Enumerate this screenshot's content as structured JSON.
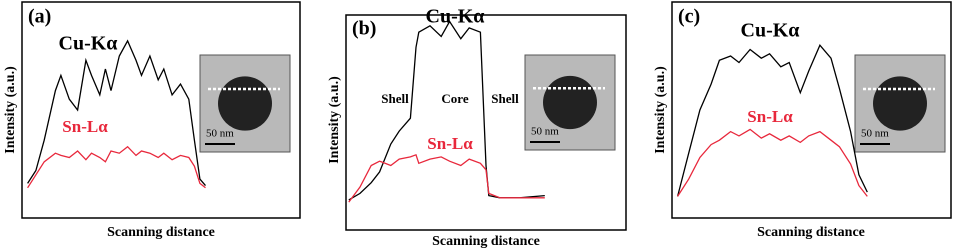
{
  "chart_data": [
    {
      "type": "line",
      "panel_label": "(a)",
      "xlabel": "Scanning distance",
      "ylabel": "Intensity (a.u.)",
      "scale_bar_label": "50 nm",
      "xlim": [
        0,
        100
      ],
      "ylim": [
        0,
        100
      ],
      "x": [
        2,
        5,
        8,
        12,
        14,
        17,
        20,
        23,
        25,
        28,
        30,
        32,
        35,
        38,
        41,
        43,
        46,
        49,
        51,
        54,
        57,
        60,
        62,
        64,
        66
      ],
      "series": [
        {
          "name": "Cu-Kα",
          "color": "#000000",
          "values": [
            16,
            22,
            36,
            59,
            66,
            55,
            50,
            73,
            66,
            57,
            69,
            59,
            75,
            82,
            73,
            66,
            75,
            64,
            69,
            57,
            62,
            55,
            36,
            18,
            15
          ]
        },
        {
          "name": "Sn-Lα",
          "color": "#e8283c",
          "values": [
            14,
            20,
            26,
            30,
            29,
            28,
            31,
            27,
            30,
            28,
            26,
            31,
            30,
            33,
            29,
            31,
            30,
            28,
            30,
            27,
            29,
            28,
            24,
            16,
            14
          ]
        }
      ]
    },
    {
      "type": "line",
      "panel_label": "(b)",
      "xlabel": "Scanning distance",
      "ylabel": "Intensity (a.u.)",
      "scale_bar_label": "50 nm",
      "annotations": [
        "Shell",
        "Core",
        "Shell"
      ],
      "xlim": [
        0,
        100
      ],
      "ylim": [
        0,
        100
      ],
      "x": [
        1,
        5,
        9,
        12,
        16,
        19,
        23,
        25,
        26,
        30,
        34,
        37,
        41,
        44,
        48,
        50,
        51,
        55,
        62,
        71
      ],
      "series": [
        {
          "name": "Cu-Kα",
          "color": "#000000",
          "values": [
            14,
            17,
            22,
            27,
            40,
            46,
            52,
            85,
            92,
            95,
            90,
            97,
            89,
            94,
            92,
            30,
            16,
            15,
            15,
            16
          ]
        },
        {
          "name": "Sn-Lα",
          "color": "#e8283c",
          "values": [
            13,
            20,
            30,
            32,
            30,
            33,
            34,
            35,
            31,
            33,
            34,
            32,
            30,
            33,
            31,
            28,
            17,
            15,
            15,
            15
          ]
        }
      ]
    },
    {
      "type": "line",
      "panel_label": "(c)",
      "xlabel": "Scanning distance",
      "ylabel": "Intensity (a.u.)",
      "scale_bar_label": "50 nm",
      "xlim": [
        0,
        100
      ],
      "ylim": [
        0,
        100
      ],
      "x": [
        2,
        6,
        10,
        14,
        17,
        21,
        24,
        28,
        32,
        35,
        39,
        42,
        46,
        49,
        53,
        57,
        60,
        64,
        67,
        70
      ],
      "series": [
        {
          "name": "Cu-Kα",
          "color": "#000000",
          "values": [
            10,
            30,
            50,
            62,
            73,
            75,
            72,
            78,
            74,
            76,
            70,
            72,
            58,
            68,
            80,
            74,
            60,
            40,
            20,
            12
          ]
        },
        {
          "name": "Sn-Lα",
          "color": "#e8283c",
          "values": [
            10,
            18,
            28,
            34,
            36,
            40,
            38,
            41,
            37,
            39,
            36,
            38,
            35,
            38,
            40,
            36,
            33,
            25,
            15,
            10
          ]
        }
      ]
    }
  ]
}
